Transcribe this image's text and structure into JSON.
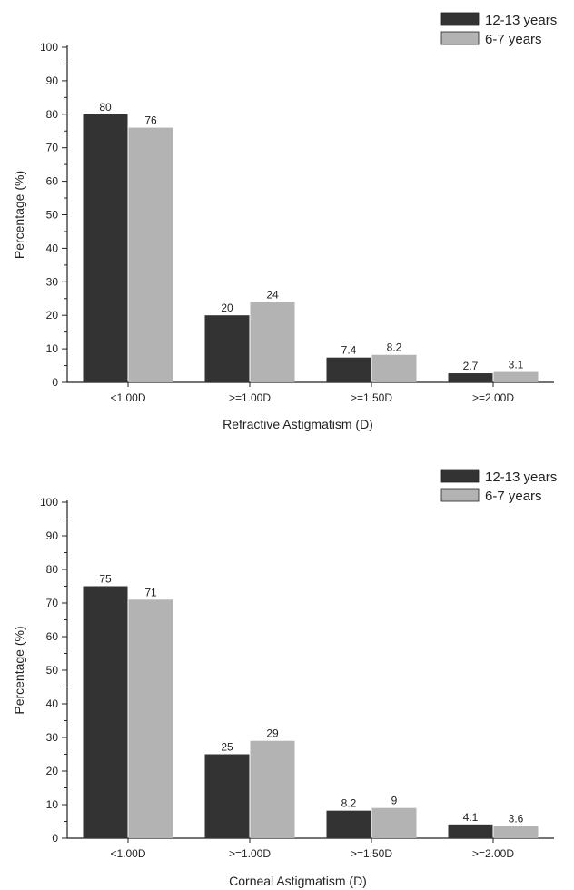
{
  "chart_data": [
    {
      "type": "bar",
      "title": "",
      "xlabel": "Refractive Astigmatism (D)",
      "ylabel": "Percentage (%)",
      "ylim": [
        0,
        100
      ],
      "yticks": [
        "0",
        "10",
        "20",
        "30",
        "40",
        "50",
        "60",
        "70",
        "80",
        "90",
        "100"
      ],
      "categories": [
        "<1.00D",
        ">=1.00D",
        ">=1.50D",
        ">=2.00D"
      ],
      "series": [
        {
          "name": "12-13 years",
          "color": "#333333",
          "values": [
            80,
            20,
            7.4,
            2.7
          ],
          "labels": [
            "80",
            "20",
            "7.4",
            "2.7"
          ]
        },
        {
          "name": "6-7 years",
          "color": "#b3b3b3",
          "values": [
            76,
            24,
            8.2,
            3.1
          ],
          "labels": [
            "76",
            "24",
            "8.2",
            "3.1"
          ]
        }
      ],
      "legend": "top-right",
      "grid": false
    },
    {
      "type": "bar",
      "title": "",
      "xlabel": "Corneal Astigmatism (D)",
      "ylabel": "Percentage (%)",
      "ylim": [
        0,
        100
      ],
      "yticks": [
        "0",
        "10",
        "20",
        "30",
        "40",
        "50",
        "60",
        "70",
        "80",
        "90",
        "100"
      ],
      "categories": [
        "<1.00D",
        ">=1.00D",
        ">=1.50D",
        ">=2.00D"
      ],
      "series": [
        {
          "name": "12-13 years",
          "color": "#333333",
          "values": [
            75,
            25,
            8.2,
            4.1
          ],
          "labels": [
            "75",
            "25",
            "8.2",
            "4.1"
          ]
        },
        {
          "name": "6-7 years",
          "color": "#b3b3b3",
          "values": [
            71,
            29,
            9,
            3.6
          ],
          "labels": [
            "71",
            "29",
            "9",
            "3.6"
          ]
        }
      ],
      "legend": "top-right",
      "grid": false
    }
  ]
}
